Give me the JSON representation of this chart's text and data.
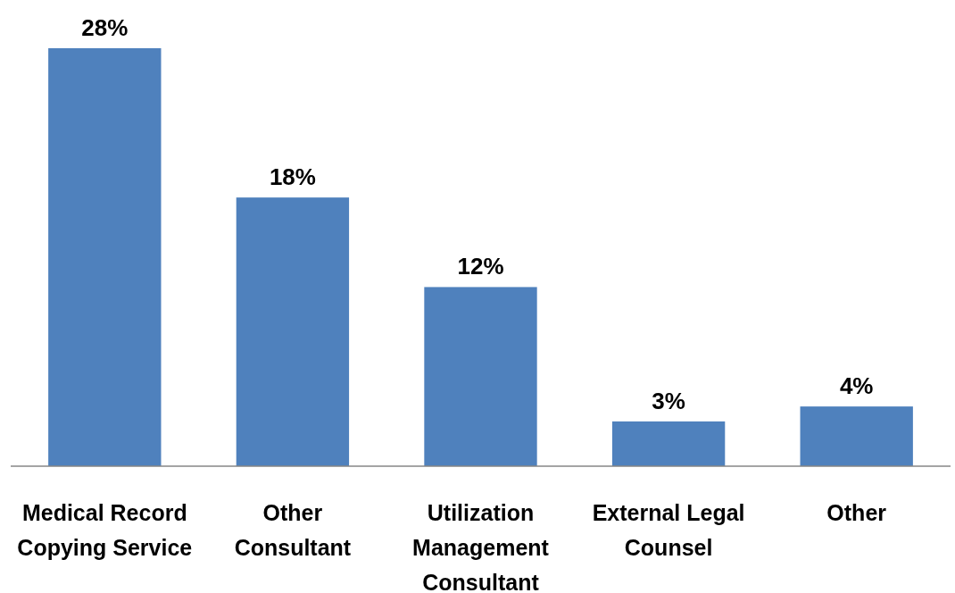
{
  "chart_data": {
    "type": "bar",
    "categories": [
      "Medical Record Copying Service",
      "Other Consultant",
      "Utilization Management Consultant",
      "External Legal Counsel",
      "Other"
    ],
    "values": [
      28,
      18,
      12,
      3,
      4
    ],
    "value_labels": [
      "28%",
      "18%",
      "12%",
      "3%",
      "4%"
    ],
    "color": "#4f81bd"
  }
}
